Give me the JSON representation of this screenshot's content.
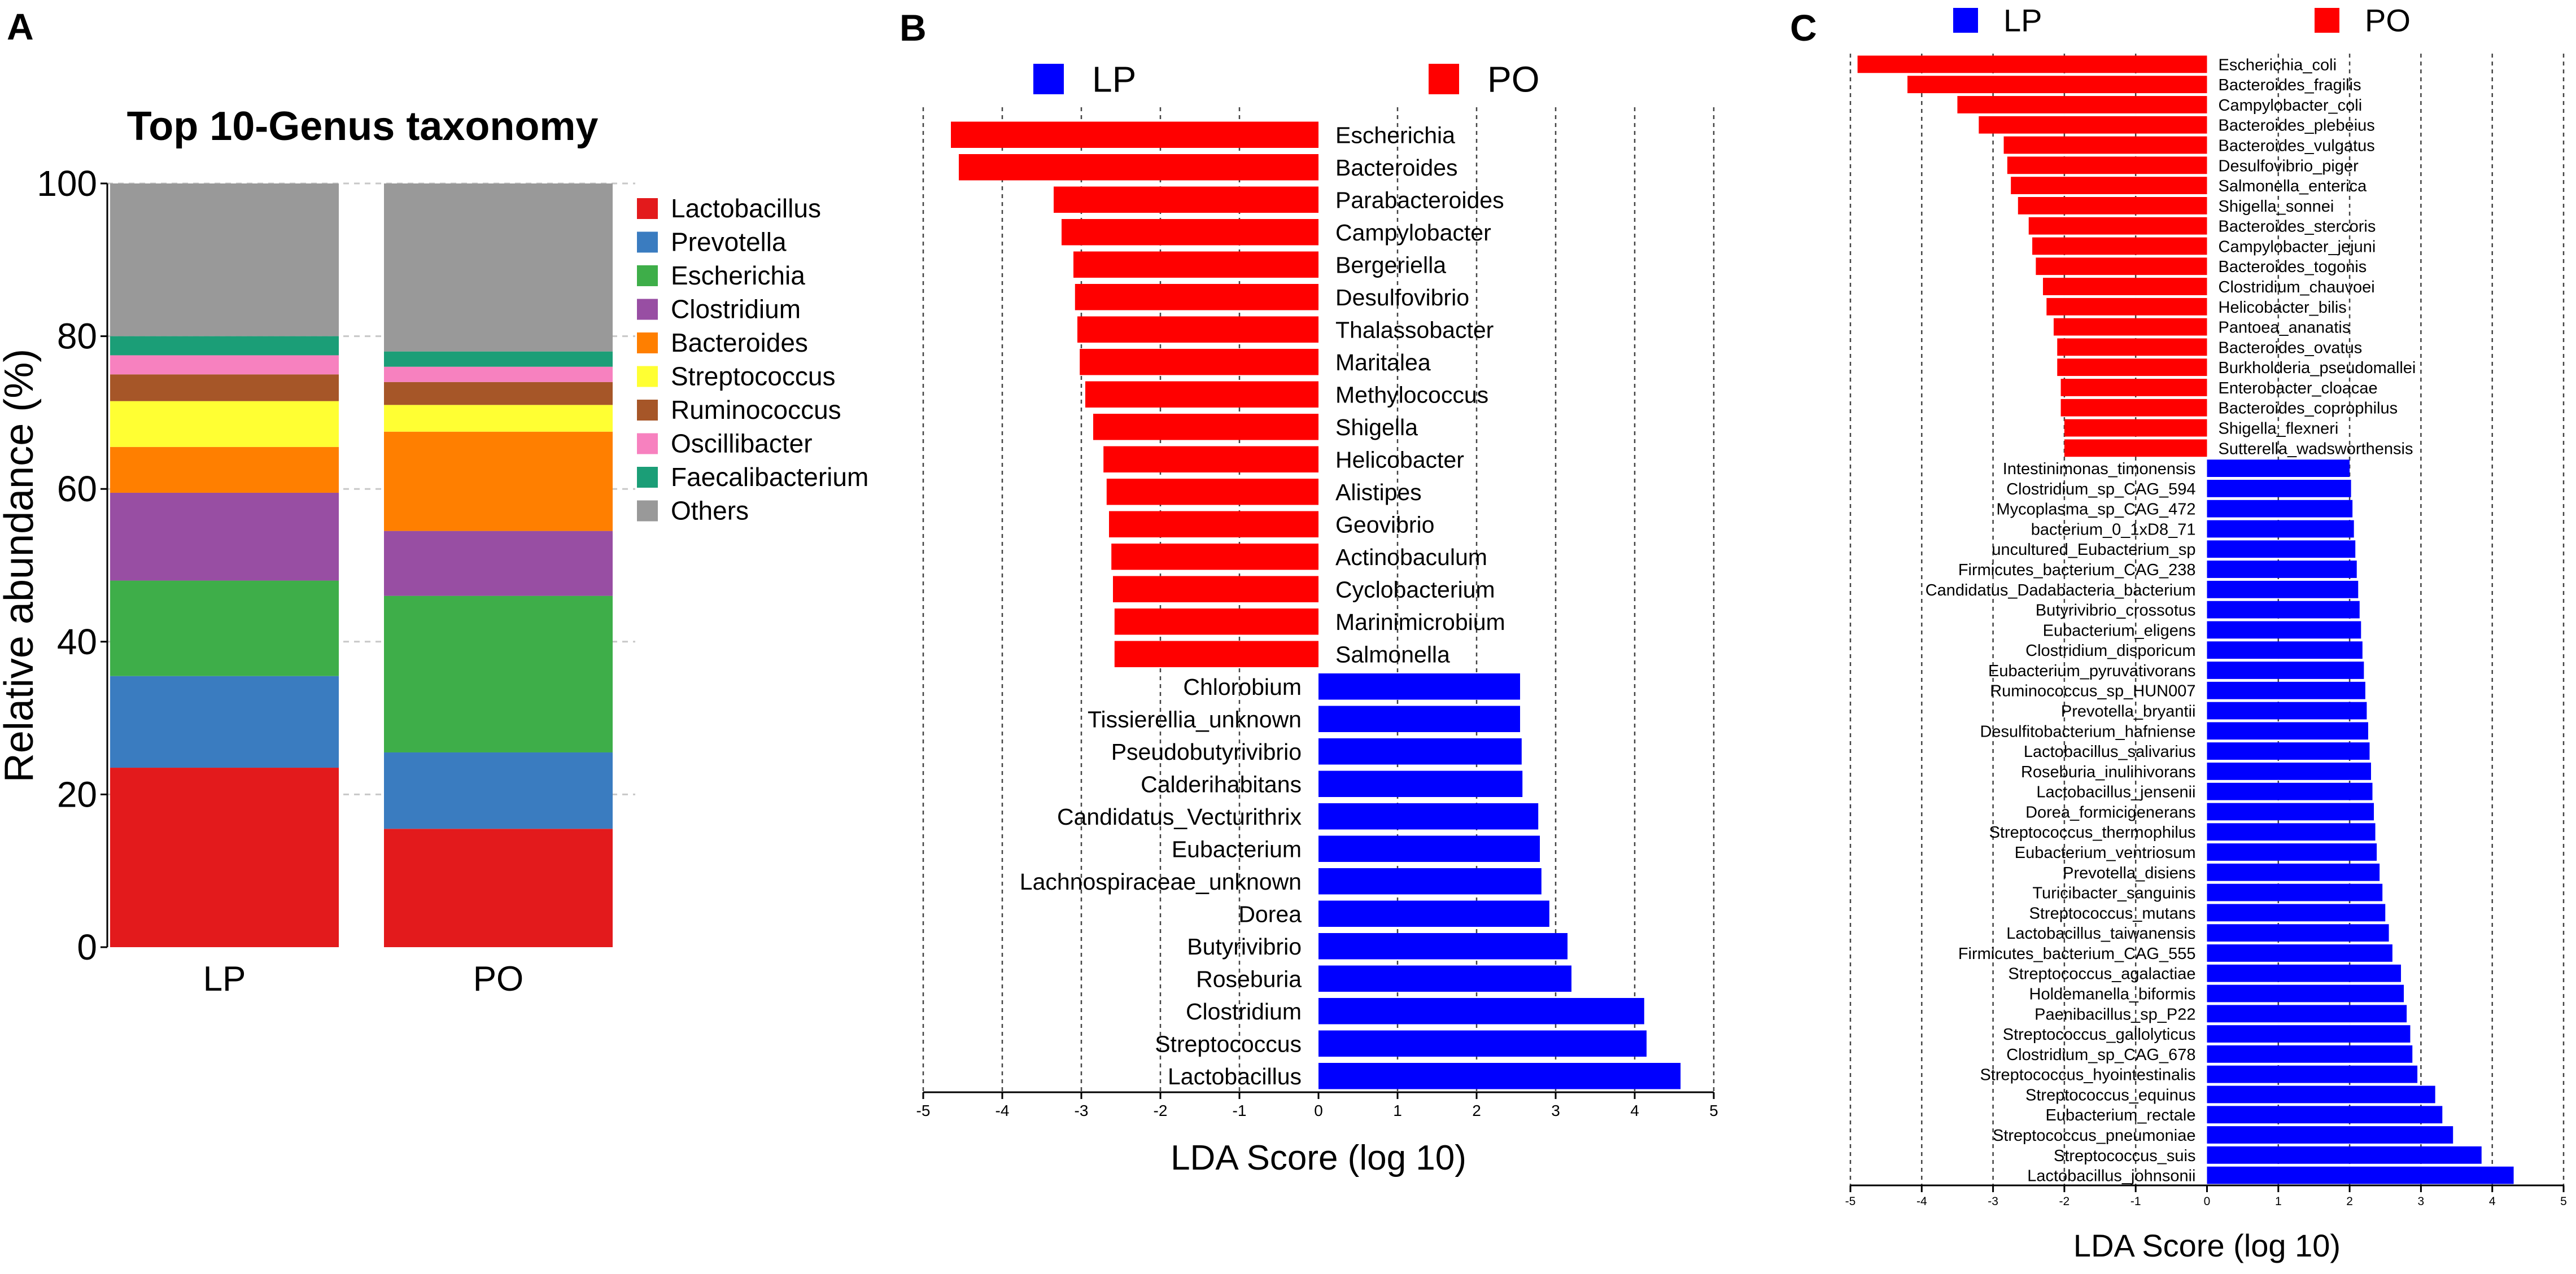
{
  "chart_data": [
    {
      "panel_label": "A",
      "type": "bar",
      "stacked": true,
      "title": "Top 10-Genus taxonomy",
      "xlabel": "",
      "ylabel": "Relative abundance (%)",
      "ylim": [
        0,
        100
      ],
      "yticks": [
        "0",
        "20",
        "40",
        "60",
        "80",
        "100"
      ],
      "categories": [
        "LP",
        "PO"
      ],
      "legend_position": "right",
      "series": [
        {
          "name": "Lactobacillus",
          "color": "#e31a1c",
          "values": [
            23.5,
            15.5
          ]
        },
        {
          "name": "Prevotella",
          "color": "#3a7cc0",
          "values": [
            12.0,
            10.0
          ]
        },
        {
          "name": "Escherichia",
          "color": "#3eae49",
          "values": [
            12.5,
            20.5
          ]
        },
        {
          "name": "Clostridium",
          "color": "#984ea3",
          "values": [
            11.5,
            8.5
          ]
        },
        {
          "name": "Bacteroides",
          "color": "#ff7f00",
          "values": [
            6.0,
            13.0
          ]
        },
        {
          "name": "Streptococcus",
          "color": "#ffff33",
          "values": [
            6.0,
            3.5
          ]
        },
        {
          "name": "Ruminococcus",
          "color": "#a65628",
          "values": [
            3.5,
            3.0
          ]
        },
        {
          "name": "Oscillibacter",
          "color": "#f781bf",
          "values": [
            2.5,
            2.0
          ]
        },
        {
          "name": "Faecalibacterium",
          "color": "#1b9e77",
          "values": [
            2.5,
            2.0
          ]
        },
        {
          "name": "Others",
          "color": "#999999",
          "values": [
            20.0,
            22.0
          ]
        }
      ]
    },
    {
      "panel_label": "B",
      "type": "bar",
      "orientation": "horizontal",
      "xlabel": "LDA Score (log 10)",
      "xlim": [
        -5,
        5
      ],
      "xticks": [
        "-5",
        "-4",
        "-3",
        "-2",
        "-1",
        "0",
        "1",
        "2",
        "3",
        "4",
        "5"
      ],
      "legend": [
        {
          "name": "LP",
          "color": "#0000ff"
        },
        {
          "name": "PO",
          "color": "#ff0000"
        }
      ],
      "series": [
        {
          "name": "PO",
          "color": "#ff0000",
          "categories": [
            "Escherichia",
            "Bacteroides",
            "Parabacteroides",
            "Campylobacter",
            "Bergeriella",
            "Desulfovibrio",
            "Thalassobacter",
            "Maritalea",
            "Methylococcus",
            "Shigella",
            "Helicobacter",
            "Alistipes",
            "Geovibrio",
            "Actinobaculum",
            "Cyclobacterium",
            "Marinimicrobium",
            "Salmonella"
          ],
          "values": [
            -4.65,
            -4.55,
            -3.35,
            -3.25,
            -3.1,
            -3.08,
            -3.05,
            -3.02,
            -2.95,
            -2.85,
            -2.72,
            -2.68,
            -2.65,
            -2.62,
            -2.6,
            -2.58,
            -2.58
          ]
        },
        {
          "name": "LP",
          "color": "#0000ff",
          "categories": [
            "Chlorobium",
            "Tissierellia_unknown",
            "Pseudobutyrivibrio",
            "Calderihabitans",
            "Candidatus_Vecturithrix",
            "Eubacterium",
            "Lachnospiraceae_unknown",
            "Dorea",
            "Butyrivibrio",
            "Roseburia",
            "Clostridium",
            "Streptococcus",
            "Lactobacillus"
          ],
          "values": [
            2.55,
            2.55,
            2.57,
            2.58,
            2.78,
            2.8,
            2.82,
            2.92,
            3.15,
            3.2,
            4.12,
            4.15,
            4.58
          ]
        }
      ]
    },
    {
      "panel_label": "C",
      "type": "bar",
      "orientation": "horizontal",
      "xlabel": "LDA Score (log 10)",
      "xlim": [
        -5,
        5
      ],
      "xticks": [
        "-5",
        "-4",
        "-3",
        "-2",
        "-1",
        "0",
        "1",
        "2",
        "3",
        "4",
        "5"
      ],
      "legend": [
        {
          "name": "LP",
          "color": "#0000ff"
        },
        {
          "name": "PO",
          "color": "#ff0000"
        }
      ],
      "series": [
        {
          "name": "PO",
          "color": "#ff0000",
          "categories": [
            "Escherichia_coli",
            "Bacteroides_fragilis",
            "Campylobacter_coli",
            "Bacteroides_plebeius",
            "Bacteroides_vulgatus",
            "Desulfovibrio_piger",
            "Salmonella_enterica",
            "Shigella_sonnei",
            "Bacteroides_stercoris",
            "Campylobacter_jejuni",
            "Bacteroides_togonis",
            "Clostridium_chauvoei",
            "Helicobacter_bilis",
            "Pantoea_ananatis",
            "Bacteroides_ovatus",
            "Burkholderia_pseudomallei",
            "Enterobacter_cloacae",
            "Bacteroides_coprophilus",
            "Shigella_flexneri",
            "Sutterella_wadsworthensis"
          ],
          "values": [
            -4.9,
            -4.2,
            -3.5,
            -3.2,
            -2.85,
            -2.8,
            -2.75,
            -2.65,
            -2.5,
            -2.45,
            -2.4,
            -2.3,
            -2.25,
            -2.15,
            -2.1,
            -2.1,
            -2.05,
            -2.05,
            -2.0,
            -2.0
          ]
        },
        {
          "name": "LP",
          "color": "#0000ff",
          "categories": [
            "Intestinimonas_timonensis",
            "Clostridium_sp_CAG_594",
            "Mycoplasma_sp_CAG_472",
            "bacterium_0_1xD8_71",
            "uncultured_Eubacterium_sp",
            "Firmicutes_bacterium_CAG_238",
            "Candidatus_Dadabacteria_bacterium",
            "Butyrivibrio_crossotus",
            "Eubacterium_eligens",
            "Clostridium_disporicum",
            "Eubacterium_pyruvativorans",
            "Ruminococcus_sp_HUN007",
            "Prevotella_bryantii",
            "Desulfitobacterium_hafniense",
            "Lactobacillus_salivarius",
            "Roseburia_inulinivorans",
            "Lactobacillus_jensenii",
            "Dorea_formicigenerans",
            "Streptococcus_thermophilus",
            "Eubacterium_ventriosum",
            "Prevotella_disiens",
            "Turicibacter_sanguinis",
            "Streptococcus_mutans",
            "Lactobacillus_taiwanensis",
            "Firmicutes_bacterium_CAG_555",
            "Streptococcus_agalactiae",
            "Holdemanella_biformis",
            "Paenibacillus_sp_P22",
            "Streptococcus_gallolyticus",
            "Clostridium_sp_CAG_678",
            "Streptococcus_hyointestinalis",
            "Streptococcus_equinus",
            "Eubacterium_rectale",
            "Streptococcus_pneumoniae",
            "Streptococcus_suis",
            "Lactobacillus_johnsonii"
          ],
          "values": [
            2.0,
            2.02,
            2.04,
            2.06,
            2.08,
            2.1,
            2.12,
            2.14,
            2.16,
            2.18,
            2.2,
            2.22,
            2.24,
            2.26,
            2.28,
            2.3,
            2.32,
            2.34,
            2.36,
            2.38,
            2.42,
            2.46,
            2.5,
            2.55,
            2.6,
            2.72,
            2.76,
            2.8,
            2.85,
            2.88,
            2.95,
            3.2,
            3.3,
            3.45,
            3.85,
            4.3
          ]
        }
      ]
    }
  ]
}
